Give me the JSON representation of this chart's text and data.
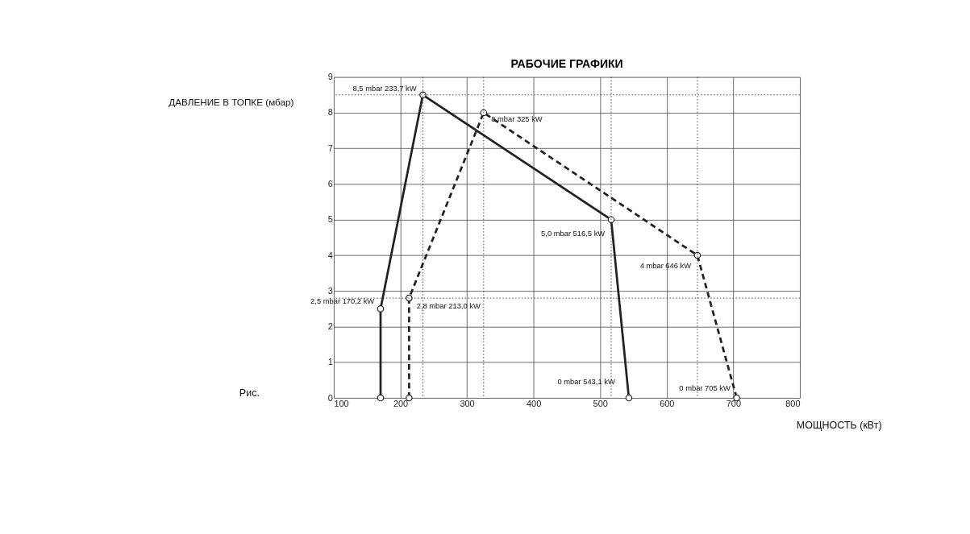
{
  "chart_data": {
    "type": "line",
    "title": "РАБОЧИЕ ГРАФИКИ",
    "xlabel": "МОЩНОСТЬ (кВт)",
    "ylabel": "ДАВЛЕНИЕ В ТОПКЕ (мбар)",
    "series": [
      {
        "color": "#222222",
        "line_style": "solid",
        "x": [
          170.2,
          170.2,
          233.7,
          516.5,
          543.1
        ],
        "values": [
          0,
          2.5,
          8.5,
          5.0,
          0
        ]
      },
      {
        "color": "#222222",
        "line_style": "dashed",
        "x": [
          213.0,
          213.0,
          325,
          646,
          705
        ],
        "values": [
          0,
          2.8,
          8,
          4,
          0
        ]
      }
    ],
    "xlim": [
      100,
      800
    ],
    "xticks": [
      100,
      200,
      300,
      400,
      500,
      600,
      700,
      800
    ],
    "ylim": [
      0,
      9
    ],
    "yticks": [
      0,
      1,
      2,
      3,
      4,
      5,
      6,
      7,
      8,
      9
    ],
    "grid": true,
    "marker": "circle",
    "ref_lines": [
      {
        "axis": "x",
        "value": 233.7,
        "line_style": "dotted"
      },
      {
        "axis": "x",
        "value": 325,
        "line_style": "dotted"
      },
      {
        "axis": "x",
        "value": 516.5,
        "line_style": "dotted"
      },
      {
        "axis": "x",
        "value": 646,
        "line_style": "dotted"
      },
      {
        "axis": "y",
        "value": 8.5,
        "line_style": "dotted"
      },
      {
        "axis": "y",
        "value": 2.8,
        "line_style": "dotted"
      }
    ],
    "annotations": [
      {
        "text": "8,5 mbar 233,7 kW",
        "x": 233.7,
        "y": 8.5
      },
      {
        "text": "8 mbar 325 kW",
        "x": 325,
        "y": 8
      },
      {
        "text": "5,0 mbar 516,5 kW",
        "x": 516.5,
        "y": 5.0
      },
      {
        "text": "4 mbar 646 kW",
        "x": 646,
        "y": 4
      },
      {
        "text": "2,5 mbar 170,2 kW",
        "x": 170.2,
        "y": 2.5
      },
      {
        "text": "2,8 mbar 213,0 kW",
        "x": 213.0,
        "y": 2.8
      },
      {
        "text": "0 mbar 543,1 kW",
        "x": 543.1,
        "y": 0
      },
      {
        "text": "0 mbar 705 kW",
        "x": 705,
        "y": 0
      },
      "Рис."
    ]
  }
}
